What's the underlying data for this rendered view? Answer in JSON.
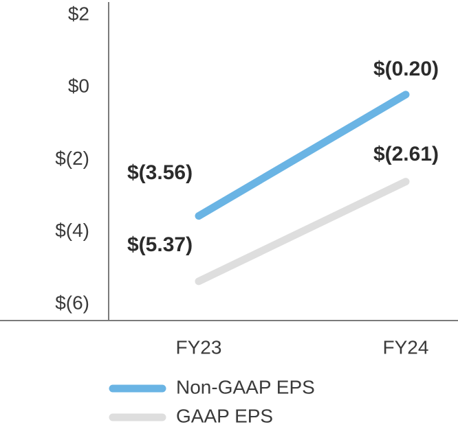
{
  "chart_data": {
    "type": "line",
    "title": "",
    "xlabel": "",
    "ylabel": "",
    "categories": [
      "FY23",
      "FY24"
    ],
    "ylim": [
      -6,
      2
    ],
    "yticks": [
      2,
      0,
      -2,
      -4,
      -6
    ],
    "ytick_labels": [
      "$2",
      "$0",
      "$(2)",
      "$(4)",
      "$(6)"
    ],
    "grid": false,
    "legend_position": "bottom-left",
    "series": [
      {
        "name": "Non-GAAP EPS",
        "color": "#6ab4e4",
        "values": [
          -3.56,
          -0.2
        ],
        "labels": [
          "$(3.56)",
          "$(0.20)"
        ]
      },
      {
        "name": "GAAP EPS",
        "color": "#dedede",
        "values": [
          -5.37,
          -2.61
        ],
        "labels": [
          "$(5.37)",
          "$(2.61)"
        ]
      }
    ]
  }
}
